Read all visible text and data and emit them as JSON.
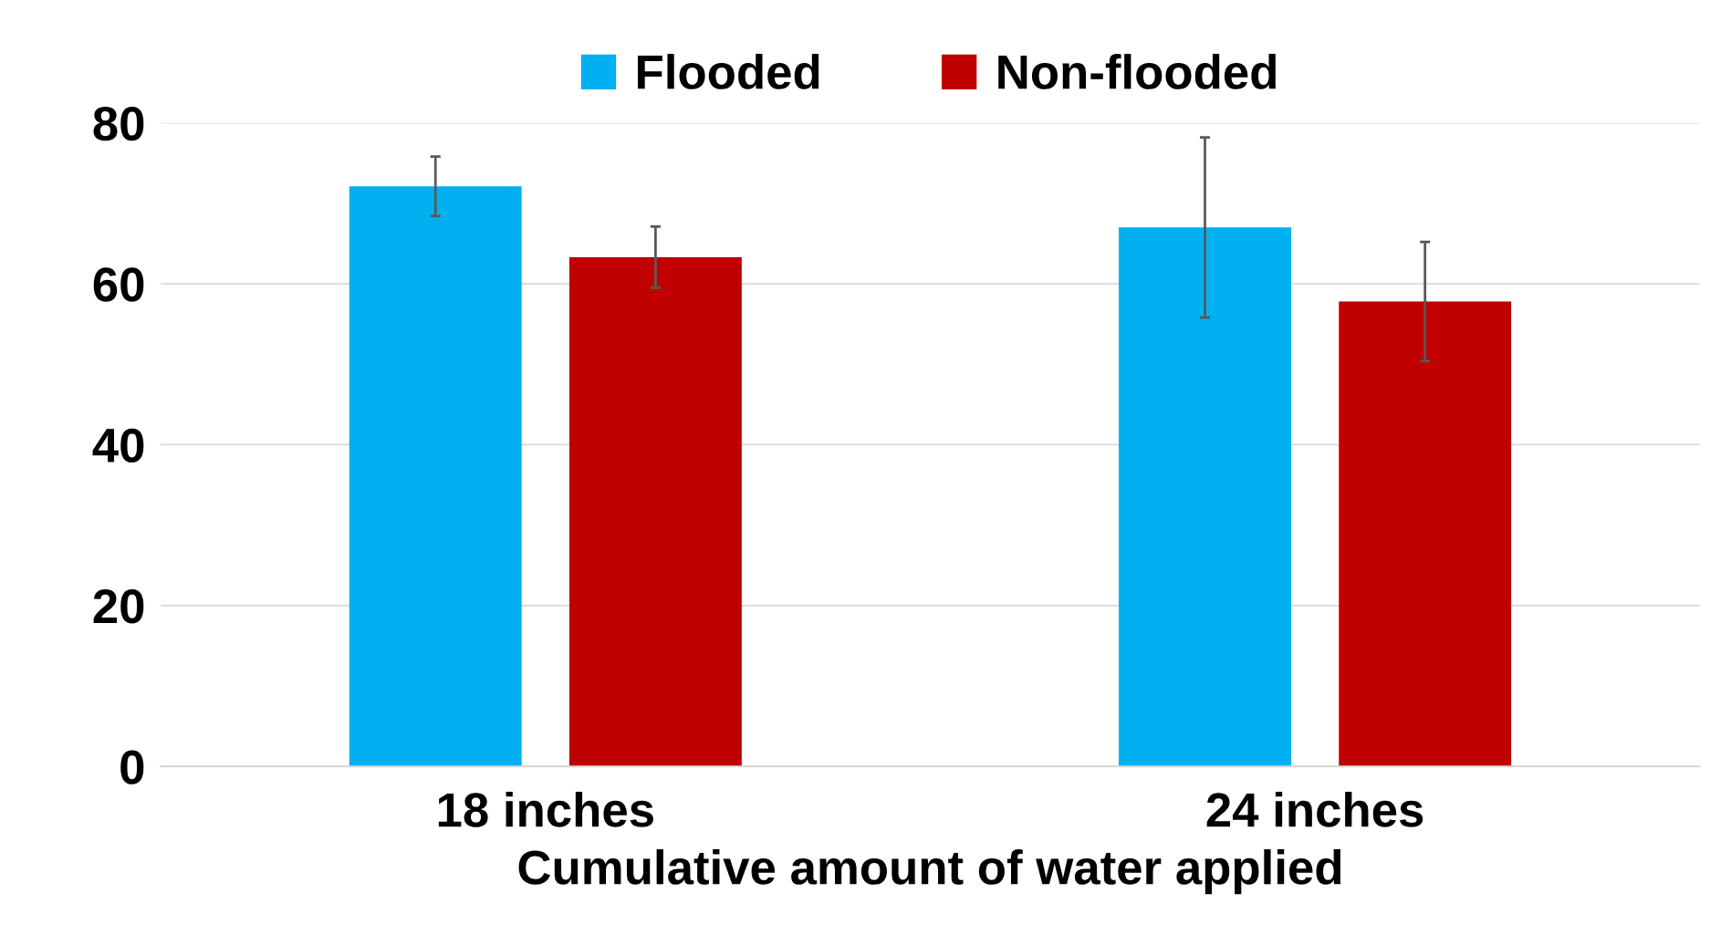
{
  "chart_data": {
    "type": "bar",
    "xlabel": "Cumulative amount of water applied",
    "categories": [
      "18 inches",
      "24 inches"
    ],
    "series": [
      {
        "name": "Flooded",
        "color": "#00b0f0",
        "values": [
          72.1,
          67.0
        ],
        "errors": [
          3.7,
          11.2
        ]
      },
      {
        "name": "Non-flooded",
        "color": "#c00000",
        "values": [
          63.3,
          57.8
        ],
        "errors": [
          3.8,
          7.4
        ]
      }
    ],
    "ylim": [
      0,
      80
    ],
    "yticks": [
      0,
      20,
      40,
      60,
      80
    ],
    "grid": "y",
    "legend": "top"
  }
}
